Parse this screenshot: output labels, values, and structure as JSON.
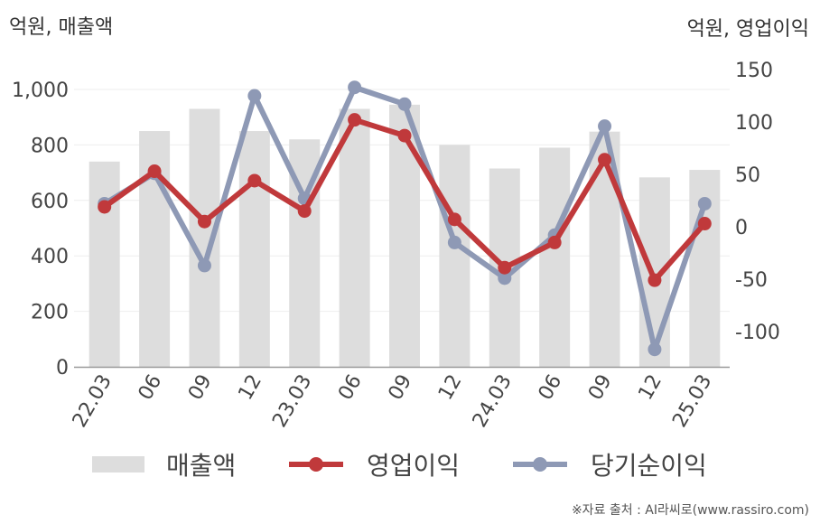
{
  "units": {
    "left": "억원, 매출액",
    "right": "억원, 영업이익"
  },
  "source": "※자료 출처 : AI라씨로(www.rassiro.com)",
  "colors": {
    "bar": "#dddddd",
    "op": "#c0393b",
    "net": "#8e99b5",
    "grid": "#eeeeee",
    "axis": "#999999"
  },
  "legend": [
    {
      "label": "매출액",
      "kind": "bar"
    },
    {
      "label": "영업이익",
      "kind": "op"
    },
    {
      "label": "당기순이익",
      "kind": "net"
    }
  ],
  "chart_data": {
    "type": "bar",
    "categories": [
      "22.03",
      "06",
      "09",
      "12",
      "23.03",
      "06",
      "09",
      "12",
      "24.03",
      "06",
      "09",
      "12",
      "25.03"
    ],
    "y_left": {
      "ticks": [
        "0",
        "200",
        "400",
        "600",
        "800",
        "1,000"
      ],
      "range": [
        0,
        1000
      ]
    },
    "y_right": {
      "ticks": [
        "-100",
        "-50",
        "0",
        "50",
        "100",
        "150"
      ],
      "range": [
        -135,
        150
      ]
    },
    "grid": true,
    "legend_position": "bottom",
    "series": [
      {
        "name": "매출액",
        "type": "bar",
        "axis": "left",
        "values": [
          740,
          850,
          930,
          850,
          820,
          930,
          945,
          800,
          715,
          790,
          848,
          683,
          710
        ]
      },
      {
        "name": "영업이익",
        "type": "line",
        "axis": "right",
        "values": [
          19,
          53,
          5,
          44,
          15,
          102,
          87,
          7,
          -39,
          -15,
          64,
          -51,
          3
        ]
      },
      {
        "name": "당기순이익",
        "type": "line",
        "axis": "right",
        "values": [
          22,
          51,
          -37,
          125,
          27,
          133,
          117,
          -15,
          -49,
          -8,
          96,
          -117,
          22
        ]
      }
    ]
  }
}
